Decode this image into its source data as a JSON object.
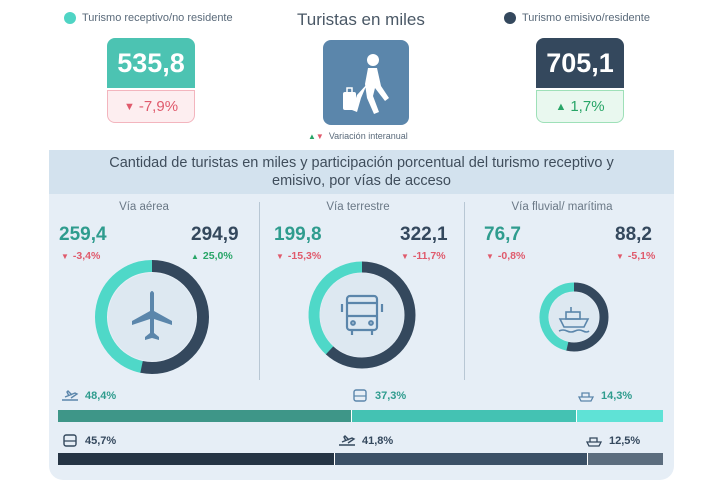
{
  "header": {
    "title": "Turistas en miles",
    "legend_receptivo": "Turismo receptivo/no residente",
    "legend_emisivo": "Turismo emisivo/residente",
    "color_receptivo": "#4fd4c4",
    "color_emisivo": "#34485d"
  },
  "kpi": {
    "receptivo_value": "535,8",
    "receptivo_change": "-7,9%",
    "emisivo_value": "705,1",
    "emisivo_change": "1,7%"
  },
  "variacion_label": "Variación interanual",
  "panel": {
    "title": "Cantidad de turistas en miles y participación porcentual del turismo receptivo y emisivo, por vías de acceso",
    "sections": [
      {
        "name": "Vía aérea",
        "receptivo": "259,4",
        "receptivo_change": "-3,4%",
        "emisivo": "294,9",
        "emisivo_change": "25,0%",
        "icon": "plane-icon"
      },
      {
        "name": "Vía terrestre",
        "receptivo": "199,8",
        "receptivo_change": "-15,3%",
        "emisivo": "322,1",
        "emisivo_change": "-11,7%",
        "icon": "bus-icon"
      },
      {
        "name": "Vía fluvial/ marítima",
        "receptivo": "76,7",
        "receptivo_change": "-0,8%",
        "emisivo": "88,2",
        "emisivo_change": "-5,1%",
        "icon": "ship-icon"
      }
    ],
    "receptivo_shares": [
      {
        "mode": "aérea",
        "pct": 48.4,
        "label": "48,4%",
        "color": "#3e9688"
      },
      {
        "mode": "terrestre",
        "pct": 37.3,
        "label": "37,3%",
        "color": "#44c2b3"
      },
      {
        "mode": "fluvial",
        "pct": 14.3,
        "label": "14,3%",
        "color": "#5fe2d6"
      }
    ],
    "emisivo_shares": [
      {
        "mode": "terrestre",
        "pct": 45.7,
        "label": "45,7%",
        "color": "#253444"
      },
      {
        "mode": "aérea",
        "pct": 41.8,
        "label": "41,8%",
        "color": "#3b5066"
      },
      {
        "mode": "fluvial",
        "pct": 12.5,
        "label": "12,5%",
        "color": "#5c6d7e"
      }
    ]
  }
}
